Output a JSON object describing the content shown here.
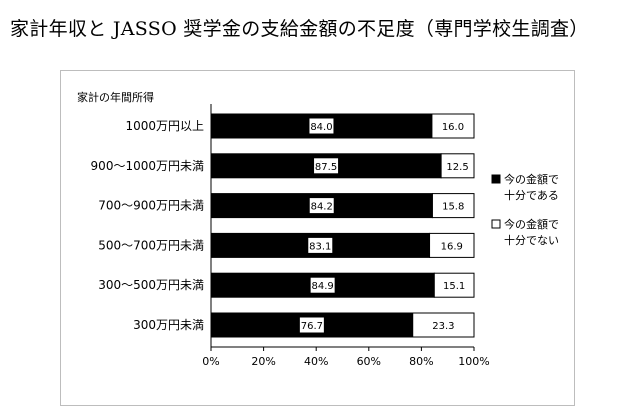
{
  "title": "家計年収と JASSO 奨学金の支給金額の不足度（専門学校生調査）",
  "chart_data": {
    "type": "bar",
    "orientation": "horizontal",
    "stacked": true,
    "title": "",
    "ylabel": "家計の年間所得",
    "xlabel": "",
    "categories": [
      "1000万円以上",
      "900～1000万円未満",
      "700～900万円未満",
      "500～700万円未満",
      "300～500万円未満",
      "300万円未満"
    ],
    "series": [
      {
        "name": "今の金額で十分である",
        "legend_lines": [
          "今の金額で",
          "十分である"
        ],
        "color": "#000000",
        "values": [
          84.0,
          87.5,
          84.2,
          83.1,
          84.9,
          76.7
        ]
      },
      {
        "name": "今の金額で十分でない",
        "legend_lines": [
          "今の金額で",
          "十分でない"
        ],
        "color": "#ffffff",
        "values": [
          16.0,
          12.5,
          15.8,
          16.9,
          15.1,
          23.3
        ]
      }
    ],
    "xlim": [
      0,
      100
    ],
    "xticks": [
      "0%",
      "20%",
      "40%",
      "60%",
      "80%",
      "100%"
    ],
    "legend_position": "right",
    "grid": false
  }
}
